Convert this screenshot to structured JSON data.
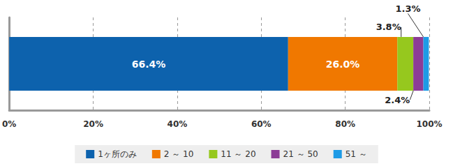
{
  "chart_data": {
    "type": "bar",
    "orientation": "horizontal",
    "stacked": true,
    "categories": [
      null
    ],
    "series": [
      {
        "name": "1ヶ所のみ",
        "color": "#0d62ad",
        "values": [
          66.4
        ],
        "value_labels": [
          "66.4%"
        ]
      },
      {
        "name": "2 ～ 10",
        "color": "#f07800",
        "values": [
          26.0
        ],
        "value_labels": [
          "26.0%"
        ]
      },
      {
        "name": "11 ～ 20",
        "color": "#96c81e",
        "values": [
          3.8
        ],
        "value_labels": [
          "3.8%"
        ]
      },
      {
        "name": "21 ～ 50",
        "color": "#8c3c96",
        "values": [
          2.4
        ],
        "value_labels": [
          "2.4%"
        ]
      },
      {
        "name": "51 ～",
        "color": "#1e9be6",
        "values": [
          1.3
        ],
        "value_labels": [
          "1.3%"
        ]
      }
    ],
    "xlim": [
      0,
      100
    ],
    "xticks": [
      {
        "value": 0,
        "label": "0%"
      },
      {
        "value": 20,
        "label": "20%"
      },
      {
        "value": 40,
        "label": "40%"
      },
      {
        "value": 60,
        "label": "60%"
      },
      {
        "value": 80,
        "label": "80%"
      },
      {
        "value": 100,
        "label": "100%"
      }
    ],
    "grid": true,
    "legend": "bottom",
    "data_labels": true,
    "tick_labels": "x"
  }
}
